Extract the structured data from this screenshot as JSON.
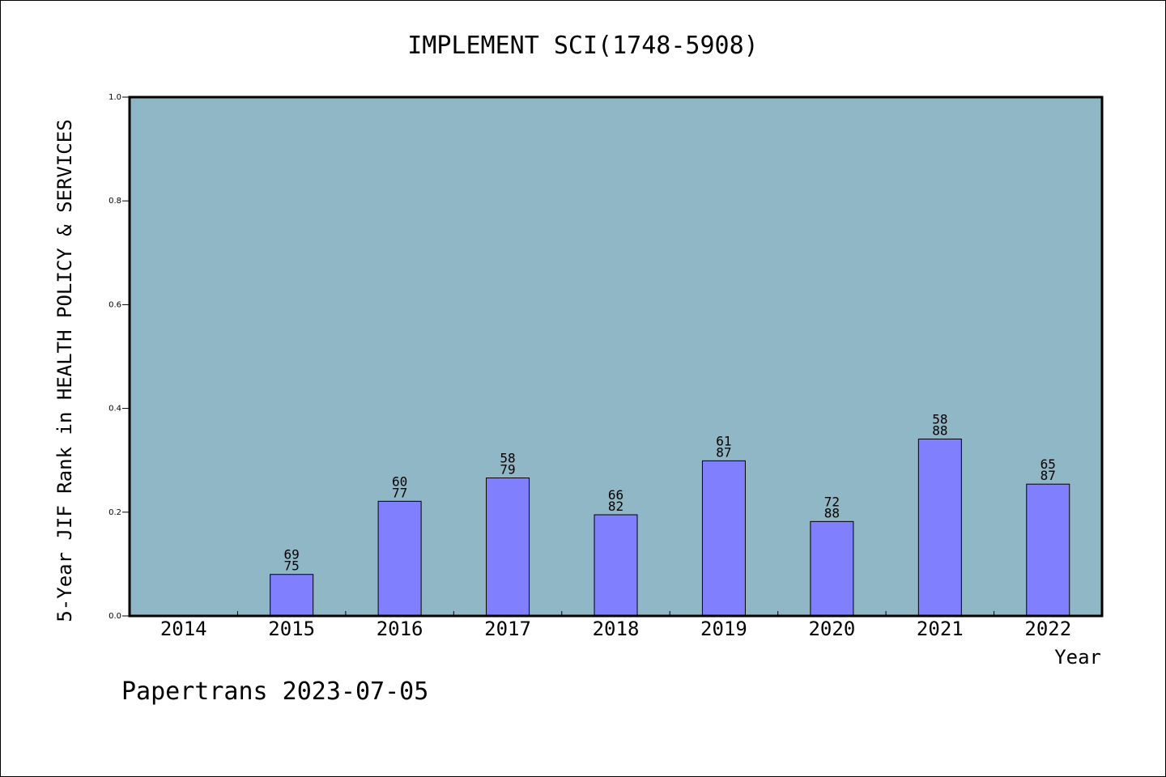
{
  "chart_data": {
    "type": "bar",
    "title": "IMPLEMENT SCI(1748-5908)",
    "ylabel": "5-Year JIF Rank in HEALTH POLICY & SERVICES",
    "xlabel": "Year",
    "ylim": [
      0,
      1.0
    ],
    "yticks": [
      "0.0",
      "0.2",
      "0.4",
      "0.6",
      "0.8",
      "1.0"
    ],
    "categories": [
      "2014",
      "2015",
      "2016",
      "2017",
      "2018",
      "2019",
      "2020",
      "2021",
      "2022"
    ],
    "values": [
      null,
      0.08,
      0.221,
      0.266,
      0.195,
      0.299,
      0.182,
      0.341,
      0.254
    ],
    "rank_labels": [
      null,
      [
        "69",
        "75"
      ],
      [
        "60",
        "77"
      ],
      [
        "58",
        "79"
      ],
      [
        "66",
        "82"
      ],
      [
        "61",
        "87"
      ],
      [
        "72",
        "88"
      ],
      [
        "58",
        "88"
      ],
      [
        "65",
        "87"
      ]
    ],
    "plot_background": "#8fb7c6",
    "bar_color": "#8080ff",
    "grid": false
  },
  "footer": {
    "text": "Papertrans 2023-07-05"
  }
}
